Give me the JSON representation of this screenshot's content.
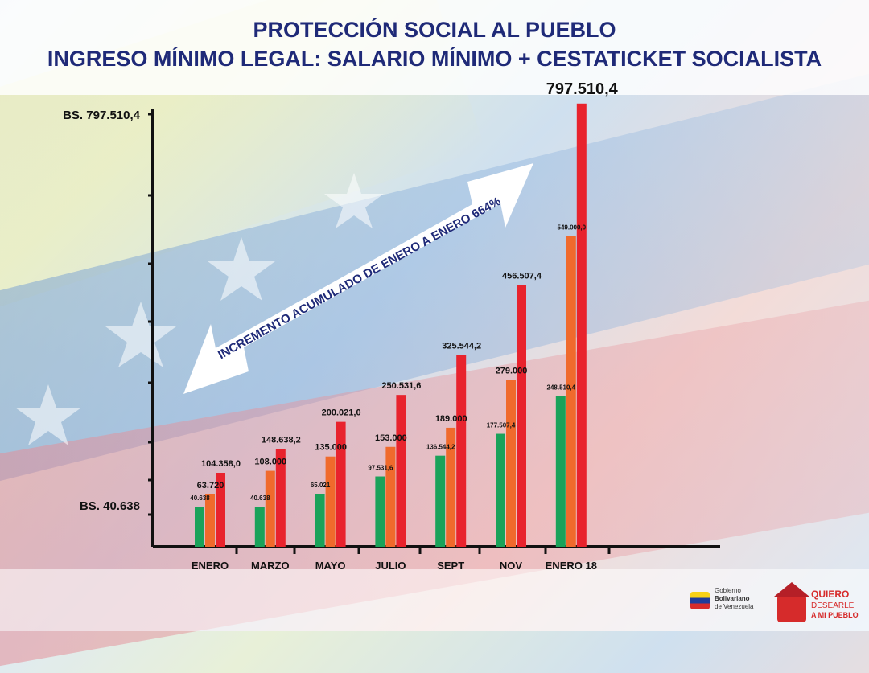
{
  "header": {
    "title_line1": "PROTECCIÓN SOCIAL AL PUEBLO",
    "title_line2": "INGRESO MÍNIMO LEGAL: SALARIO MÍNIMO + CESTATICKET SOCIALISTA"
  },
  "annotation": {
    "arrow_text": "INCREMENTO ACUMULADO DE ENERO A ENERO 664%"
  },
  "logos": {
    "gobierno": {
      "line1": "Gobierno",
      "line2": "Bolivariano",
      "line3": "de Venezuela"
    },
    "quiero": {
      "line1": "QUIERO",
      "line2": "DESEARLE",
      "line3": "A MI PUEBLO"
    }
  },
  "colors": {
    "green": "#1aa25a",
    "orange": "#f06a2c",
    "red": "#e8232d",
    "title": "#1f2a78",
    "axis": "#111111"
  },
  "chart_data": {
    "type": "bar",
    "categories": [
      "ENERO",
      "MARZO",
      "MAYO",
      "JULIO",
      "SEPT",
      "NOV",
      "ENERO 18"
    ],
    "y_tick_labels": [
      "BS. 797.510,4",
      "BS. 40.638"
    ],
    "y_tick_values": [
      797510.4,
      40638
    ],
    "series": [
      {
        "color": "green",
        "values": [
          40638,
          40638,
          65021,
          97531.6,
          136544.2,
          177507.4,
          248510.4
        ],
        "labels": [
          "40.638",
          "40.638",
          "65.021",
          "97.531,6",
          "136.544,2",
          "177.507,4",
          "248.510,4"
        ]
      },
      {
        "color": "orange",
        "values": [
          63720,
          108000,
          135000,
          153000,
          189000,
          279000,
          549000
        ],
        "labels": [
          "63.720",
          "108.000",
          "135.000",
          "153.000",
          "189.000",
          "279.000",
          "549.000,0"
        ]
      },
      {
        "color": "red",
        "values": [
          104358,
          148638.2,
          200021,
          250531.6,
          325544.2,
          456507.4,
          797510.4
        ],
        "labels": [
          "104.358,0",
          "148.638,2",
          "200.021,0",
          "250.531,6",
          "325.544,2",
          "456.507,4",
          "797.510,4"
        ]
      }
    ]
  }
}
